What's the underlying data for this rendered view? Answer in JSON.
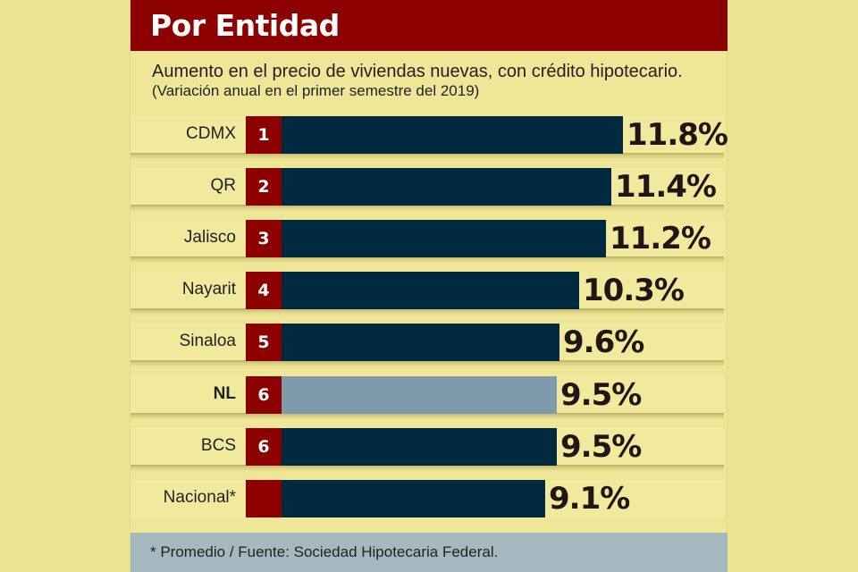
{
  "header": {
    "title": "Por Entidad"
  },
  "subtitle": {
    "main": "Aumento en el precio de viviendas nuevas, con crédito hipotecario.",
    "note": "(Variación anual en el primer semestre del 2019)"
  },
  "colors": {
    "accent_red": "#8c0000",
    "bar_dark": "#002a40",
    "bar_highlight": "#7e9aab",
    "background": "#ede491",
    "footer_bg": "#a4b8c0"
  },
  "chart_data": {
    "type": "bar",
    "orientation": "horizontal",
    "title": "Por Entidad",
    "subtitle": "Aumento en el precio de viviendas nuevas, con crédito hipotecario. (Variación anual en el primer semestre del 2019)",
    "xlabel": "",
    "ylabel": "",
    "xlim": [
      0,
      11.8
    ],
    "grid": false,
    "unit": "%",
    "categories": [
      "CDMX",
      "QR",
      "Jalisco",
      "Nayarit",
      "Sinaloa",
      "NL",
      "BCS",
      "Nacional*"
    ],
    "ranks": [
      "1",
      "2",
      "3",
      "4",
      "5",
      "6",
      "6",
      ""
    ],
    "values": [
      11.8,
      11.4,
      11.2,
      10.3,
      9.6,
      9.5,
      9.5,
      9.1
    ],
    "value_labels": [
      "11.8%",
      "11.4%",
      "11.2%",
      "10.3%",
      "9.6%",
      "9.5%",
      "9.5%",
      "9.1%"
    ],
    "highlighted": [
      false,
      false,
      false,
      false,
      false,
      true,
      false,
      false
    ]
  },
  "footer": {
    "text": "* Promedio / Fuente: Sociedad Hipotecaria Federal."
  }
}
